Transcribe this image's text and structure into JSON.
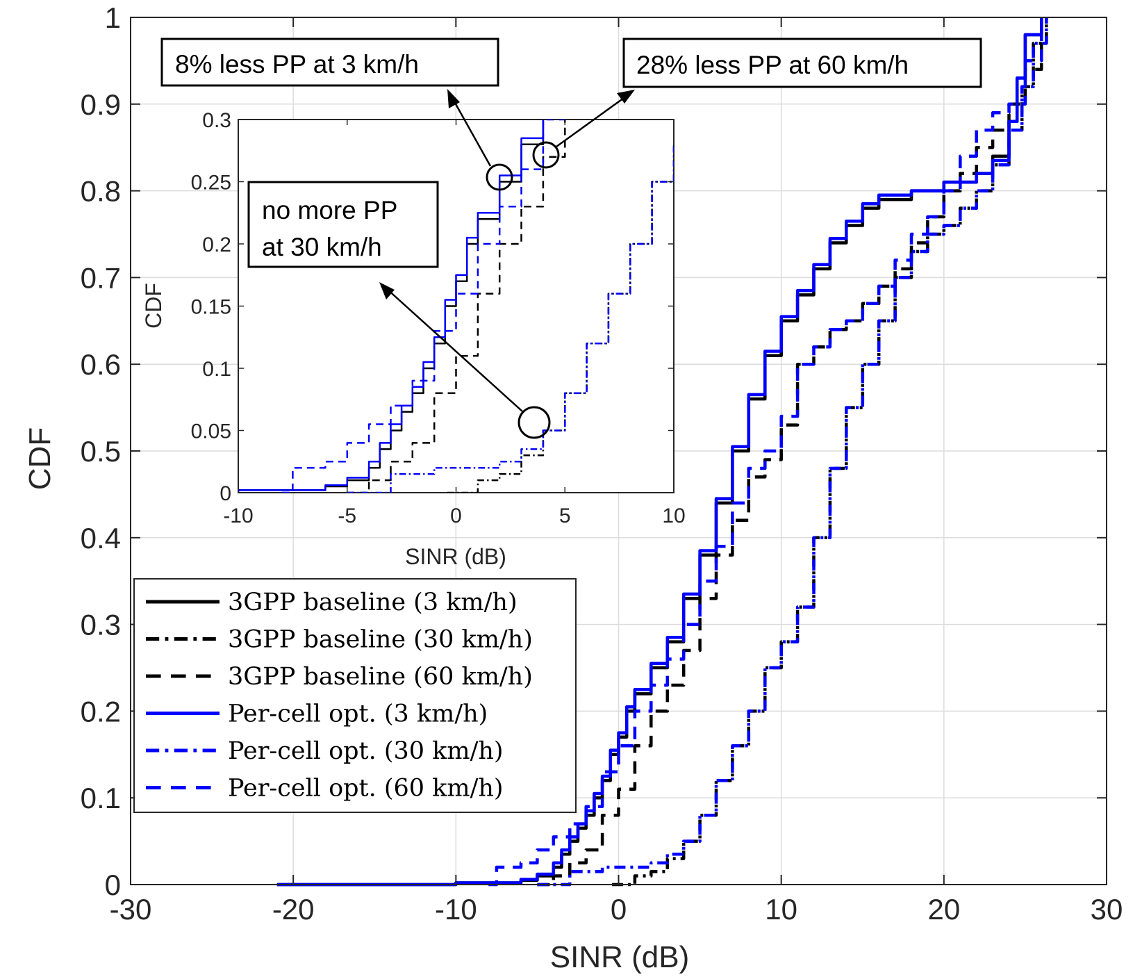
{
  "chart_data": [
    {
      "type": "line",
      "title": "",
      "xlabel": "SINR (dB)",
      "ylabel": "CDF",
      "xlim": [
        -30,
        30
      ],
      "ylim": [
        0,
        1
      ],
      "xticks": [
        -30,
        -20,
        -10,
        0,
        10,
        20,
        30
      ],
      "yticks": [
        0,
        0.1,
        0.2,
        0.3,
        0.4,
        0.5,
        0.6,
        0.7,
        0.8,
        0.9,
        1
      ],
      "xtick_labels": [
        "-30",
        "-20",
        "-10",
        "0",
        "10",
        "20",
        "30"
      ],
      "ytick_labels": [
        "0",
        "0.1",
        "0.2",
        "0.3",
        "0.4",
        "0.5",
        "0.6",
        "0.7",
        "0.8",
        "0.9",
        "1"
      ],
      "grid": true,
      "legend_position": "bottom-left",
      "series": [
        {
          "name": "3GPP baseline (3 km/h)",
          "color": "#000000",
          "style": "solid",
          "points": [
            [
              -21,
              0
            ],
            [
              -10,
              0.002
            ],
            [
              -6,
              0.005
            ],
            [
              -5,
              0.01
            ],
            [
              -4,
              0.02
            ],
            [
              -3.5,
              0.035
            ],
            [
              -3,
              0.05
            ],
            [
              -2.5,
              0.065
            ],
            [
              -2,
              0.08
            ],
            [
              -1.5,
              0.1
            ],
            [
              -1,
              0.12
            ],
            [
              -0.5,
              0.15
            ],
            [
              0,
              0.17
            ],
            [
              0.5,
              0.2
            ],
            [
              1,
              0.22
            ],
            [
              2,
              0.25
            ],
            [
              3,
              0.28
            ],
            [
              4,
              0.33
            ],
            [
              5,
              0.38
            ],
            [
              6,
              0.44
            ],
            [
              7,
              0.5
            ],
            [
              8,
              0.56
            ],
            [
              9,
              0.61
            ],
            [
              10,
              0.65
            ],
            [
              11,
              0.68
            ],
            [
              12,
              0.71
            ],
            [
              13,
              0.74
            ],
            [
              14,
              0.76
            ],
            [
              15,
              0.78
            ],
            [
              16,
              0.79
            ],
            [
              18,
              0.8
            ],
            [
              20,
              0.81
            ],
            [
              22,
              0.82
            ],
            [
              23,
              0.84
            ],
            [
              24,
              0.88
            ],
            [
              24.5,
              0.93
            ],
            [
              25,
              0.98
            ],
            [
              26,
              1
            ]
          ]
        },
        {
          "name": "3GPP baseline (30 km/h)",
          "color": "#000000",
          "style": "dashdot",
          "points": [
            [
              -0.4,
              0
            ],
            [
              1,
              0.01
            ],
            [
              2,
              0.015
            ],
            [
              3,
              0.03
            ],
            [
              4,
              0.05
            ],
            [
              5,
              0.08
            ],
            [
              6,
              0.12
            ],
            [
              7,
              0.16
            ],
            [
              8,
              0.2
            ],
            [
              9,
              0.25
            ],
            [
              10,
              0.28
            ],
            [
              11,
              0.32
            ],
            [
              12,
              0.4
            ],
            [
              13,
              0.48
            ],
            [
              14,
              0.55
            ],
            [
              15,
              0.6
            ],
            [
              16,
              0.65
            ],
            [
              17,
              0.7
            ],
            [
              18,
              0.73
            ],
            [
              19,
              0.75
            ],
            [
              20,
              0.76
            ],
            [
              21,
              0.78
            ],
            [
              22,
              0.8
            ],
            [
              23,
              0.83
            ],
            [
              24,
              0.87
            ],
            [
              24.8,
              0.92
            ],
            [
              25.5,
              0.97
            ],
            [
              26.3,
              1
            ]
          ]
        },
        {
          "name": "3GPP baseline (60 km/h)",
          "color": "#000000",
          "style": "dashed",
          "points": [
            [
              -5,
              0
            ],
            [
              -4,
              0.01
            ],
            [
              -3,
              0.025
            ],
            [
              -2,
              0.04
            ],
            [
              -1,
              0.08
            ],
            [
              0,
              0.11
            ],
            [
              1,
              0.16
            ],
            [
              2,
              0.2
            ],
            [
              3,
              0.23
            ],
            [
              4,
              0.27
            ],
            [
              5,
              0.33
            ],
            [
              6,
              0.38
            ],
            [
              7,
              0.42
            ],
            [
              8,
              0.47
            ],
            [
              9,
              0.49
            ],
            [
              10,
              0.53
            ],
            [
              11,
              0.6
            ],
            [
              12,
              0.62
            ],
            [
              13,
              0.64
            ],
            [
              14,
              0.65
            ],
            [
              15,
              0.67
            ],
            [
              16,
              0.69
            ],
            [
              17,
              0.71
            ],
            [
              18,
              0.74
            ],
            [
              19,
              0.77
            ],
            [
              20,
              0.8
            ],
            [
              21,
              0.82
            ],
            [
              22,
              0.85
            ],
            [
              23,
              0.87
            ],
            [
              24,
              0.9
            ],
            [
              25,
              0.94
            ],
            [
              26,
              1
            ]
          ]
        },
        {
          "name": "Per-cell opt. (3 km/h)",
          "color": "#0000ff",
          "style": "solid",
          "points": [
            [
              -21,
              0
            ],
            [
              -10,
              0.002
            ],
            [
              -6,
              0.006
            ],
            [
              -5,
              0.012
            ],
            [
              -4,
              0.025
            ],
            [
              -3.5,
              0.04
            ],
            [
              -3,
              0.055
            ],
            [
              -2.5,
              0.07
            ],
            [
              -2,
              0.085
            ],
            [
              -1.5,
              0.105
            ],
            [
              -1,
              0.125
            ],
            [
              -0.5,
              0.155
            ],
            [
              0,
              0.175
            ],
            [
              0.5,
              0.205
            ],
            [
              1,
              0.225
            ],
            [
              2,
              0.255
            ],
            [
              3,
              0.285
            ],
            [
              4,
              0.335
            ],
            [
              5,
              0.385
            ],
            [
              6,
              0.445
            ],
            [
              7,
              0.505
            ],
            [
              8,
              0.565
            ],
            [
              9,
              0.615
            ],
            [
              10,
              0.655
            ],
            [
              11,
              0.685
            ],
            [
              12,
              0.715
            ],
            [
              13,
              0.745
            ],
            [
              14,
              0.765
            ],
            [
              15,
              0.785
            ],
            [
              16,
              0.795
            ],
            [
              18,
              0.8
            ],
            [
              20,
              0.81
            ],
            [
              22,
              0.82
            ],
            [
              23,
              0.835
            ],
            [
              24,
              0.88
            ],
            [
              24.5,
              0.93
            ],
            [
              25,
              0.98
            ],
            [
              26,
              1
            ]
          ]
        },
        {
          "name": "Per-cell opt. (30 km/h)",
          "color": "#0000ff",
          "style": "dashdot",
          "points": [
            [
              -5,
              0
            ],
            [
              -3,
              0.015
            ],
            [
              -1,
              0.02
            ],
            [
              0,
              0.02
            ],
            [
              1,
              0.02
            ],
            [
              2,
              0.025
            ],
            [
              3,
              0.035
            ],
            [
              4,
              0.05
            ],
            [
              5,
              0.08
            ],
            [
              6,
              0.12
            ],
            [
              7,
              0.16
            ],
            [
              8,
              0.2
            ],
            [
              9,
              0.25
            ],
            [
              10,
              0.28
            ],
            [
              11,
              0.32
            ],
            [
              12,
              0.4
            ],
            [
              13,
              0.48
            ],
            [
              14,
              0.55
            ],
            [
              15,
              0.6
            ],
            [
              16,
              0.65
            ],
            [
              17,
              0.7
            ],
            [
              18,
              0.73
            ],
            [
              19,
              0.75
            ],
            [
              20,
              0.76
            ],
            [
              21,
              0.78
            ],
            [
              22,
              0.8
            ],
            [
              23,
              0.83
            ],
            [
              24,
              0.87
            ],
            [
              24.8,
              0.92
            ],
            [
              25.5,
              0.97
            ],
            [
              26.3,
              1
            ]
          ]
        },
        {
          "name": "Per-cell opt. (60 km/h)",
          "color": "#0000ff",
          "style": "dashed",
          "points": [
            [
              -8,
              0
            ],
            [
              -7.5,
              0.02
            ],
            [
              -6,
              0.025
            ],
            [
              -5,
              0.04
            ],
            [
              -4,
              0.055
            ],
            [
              -3,
              0.07
            ],
            [
              -2,
              0.09
            ],
            [
              -1,
              0.13
            ],
            [
              0,
              0.16
            ],
            [
              1,
              0.2
            ],
            [
              2,
              0.23
            ],
            [
              3,
              0.26
            ],
            [
              4,
              0.3
            ],
            [
              5,
              0.35
            ],
            [
              6,
              0.39
            ],
            [
              7,
              0.44
            ],
            [
              8,
              0.48
            ],
            [
              9,
              0.5
            ],
            [
              10,
              0.54
            ],
            [
              11,
              0.6
            ],
            [
              12,
              0.62
            ],
            [
              13,
              0.64
            ],
            [
              14,
              0.65
            ],
            [
              15,
              0.67
            ],
            [
              16,
              0.69
            ],
            [
              17,
              0.72
            ],
            [
              18,
              0.75
            ],
            [
              19,
              0.77
            ],
            [
              20,
              0.8
            ],
            [
              21,
              0.84
            ],
            [
              22,
              0.87
            ],
            [
              23,
              0.89
            ],
            [
              24,
              0.9
            ],
            [
              25,
              0.95
            ],
            [
              26,
              1
            ]
          ]
        }
      ],
      "legend": [
        "3GPP baseline (3 km/h)",
        "3GPP baseline (30 km/h)",
        "3GPP baseline (60 km/h)",
        "Per-cell opt. (3 km/h)",
        "Per-cell opt. (30 km/h)",
        "Per-cell opt. (60 km/h)"
      ],
      "annotations": [
        "8% less PP at 3 km/h",
        "28% less PP at 60 km/h",
        "no more PP",
        "at 30 km/h"
      ]
    },
    {
      "type": "line",
      "title": "",
      "xlabel": "SINR (dB)",
      "ylabel": "CDF",
      "xlim": [
        -10,
        10
      ],
      "ylim": [
        0,
        0.3
      ],
      "xticks": [
        -10,
        -5,
        0,
        5,
        10
      ],
      "yticks": [
        0,
        0.05,
        0.1,
        0.15,
        0.2,
        0.25,
        0.3
      ],
      "xtick_labels": [
        "-10",
        "-5",
        "0",
        "5",
        "10"
      ],
      "ytick_labels": [
        "0",
        "0.05",
        "0.1",
        "0.15",
        "0.2",
        "0.25",
        "0.3"
      ],
      "grid": false,
      "inset": true
    }
  ]
}
